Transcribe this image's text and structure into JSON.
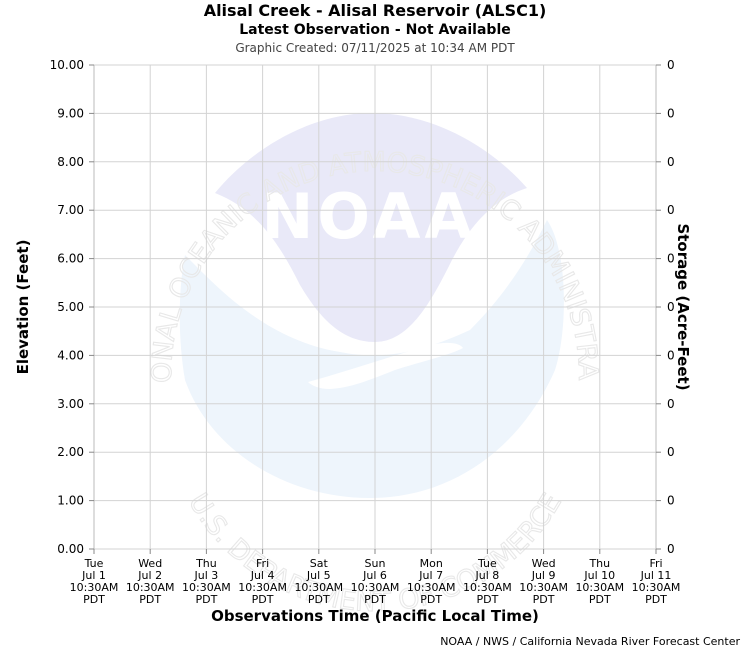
{
  "chart_data": {
    "type": "line",
    "title": "Alisal Creek - Alisal Reservoir (ALSC1)",
    "subtitle": "Latest Observation -  Not Available",
    "created": "Graphic Created: 07/11/2025 at 10:34 AM PDT",
    "xlabel": "Observations Time (Pacific Local Time)",
    "ylabel": "Elevation (Feet)",
    "y2label": "Storage (Acre-Feet)",
    "ylim": [
      0,
      10
    ],
    "yticks": [
      "0.00",
      "1.00",
      "2.00",
      "3.00",
      "4.00",
      "5.00",
      "6.00",
      "7.00",
      "8.00",
      "9.00",
      "10.00"
    ],
    "y2ticks": [
      "0",
      "0",
      "0",
      "0",
      "0",
      "0",
      "0",
      "0",
      "0",
      "0",
      "0"
    ],
    "xticks": [
      [
        "Tue",
        "Jul 1",
        "10:30AM",
        "PDT"
      ],
      [
        "Wed",
        "Jul 2",
        "10:30AM",
        "PDT"
      ],
      [
        "Thu",
        "Jul 3",
        "10:30AM",
        "PDT"
      ],
      [
        "Fri",
        "Jul 4",
        "10:30AM",
        "PDT"
      ],
      [
        "Sat",
        "Jul 5",
        "10:30AM",
        "PDT"
      ],
      [
        "Sun",
        "Jul 6",
        "10:30AM",
        "PDT"
      ],
      [
        "Mon",
        "Jul 7",
        "10:30AM",
        "PDT"
      ],
      [
        "Tue",
        "Jul 8",
        "10:30AM",
        "PDT"
      ],
      [
        "Wed",
        "Jul 9",
        "10:30AM",
        "PDT"
      ],
      [
        "Thu",
        "Jul 10",
        "10:30AM",
        "PDT"
      ],
      [
        "Fri",
        "Jul 11",
        "10:30AM",
        "PDT"
      ]
    ],
    "series": [],
    "grid": true,
    "credit": "NOAA / NWS / California Nevada River Forecast Center"
  },
  "watermark": {
    "logo_text": "NOAA",
    "ring_top": "NATIONAL OCEANIC AND ATMOSPHERIC ADMINISTRATION",
    "ring_bottom": "U.S. DEPARTMENT OF COMMERCE",
    "colors": {
      "upper": "#e9e9f8",
      "lower": "#eef5fc",
      "ring_text": "#e8e8e8"
    }
  }
}
